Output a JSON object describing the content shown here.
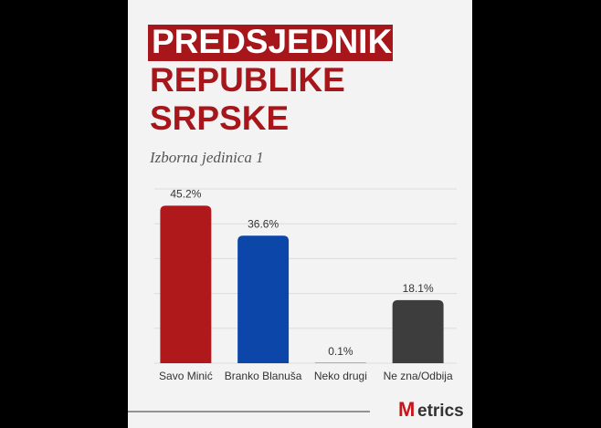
{
  "chart_data": {
    "type": "bar",
    "title": {
      "line1": "PREDSJEDNIK",
      "line2": "REPUBLIKE",
      "line3": "SRPSKE"
    },
    "subtitle": "Izborna jedinica 1",
    "categories": [
      "Savo Minić",
      "Branko Blanuša",
      "Neko drugi",
      "Ne zna/Odbija"
    ],
    "values": [
      45.2,
      36.6,
      0.1,
      18.1
    ],
    "value_labels": [
      "45.2%",
      "36.6%",
      "0.1%",
      "18.1%"
    ],
    "colors": [
      "#b0191c",
      "#0b46a8",
      "#444444",
      "#3d3d3d"
    ],
    "ylim": [
      0,
      50
    ],
    "yticks": [
      0,
      10,
      20,
      30,
      40,
      50
    ],
    "grid": true
  },
  "brand": {
    "initial": "M",
    "rest": "etrics"
  }
}
